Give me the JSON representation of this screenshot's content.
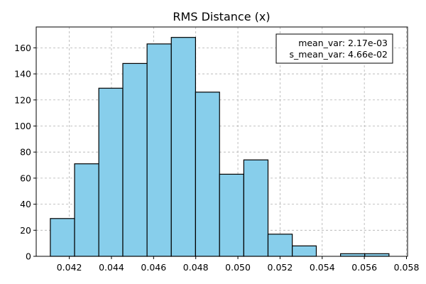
{
  "chart_data": {
    "type": "bar",
    "subtype": "histogram",
    "title": "RMS Distance (x)",
    "xlabel": "",
    "ylabel": "",
    "xlim": [
      0.04043,
      0.05805
    ],
    "ylim": [
      0,
      176
    ],
    "x_ticks": [
      0.042,
      0.044,
      0.046,
      0.048,
      0.05,
      0.052,
      0.054,
      0.056,
      0.058
    ],
    "x_tick_labels": [
      "0.042",
      "0.044",
      "0.046",
      "0.048",
      "0.050",
      "0.052",
      "0.054",
      "0.056",
      "0.058"
    ],
    "y_ticks": [
      0,
      20,
      40,
      60,
      80,
      100,
      120,
      140,
      160
    ],
    "y_tick_labels": [
      "0",
      "20",
      "40",
      "60",
      "80",
      "100",
      "120",
      "140",
      "160"
    ],
    "bin_edges": [
      0.0411,
      0.04225,
      0.0434,
      0.04454,
      0.04569,
      0.04684,
      0.04799,
      0.04913,
      0.05028,
      0.05143,
      0.05258,
      0.05372,
      0.05487,
      0.05602,
      0.05717
    ],
    "counts": [
      29,
      71,
      129,
      148,
      163,
      168,
      126,
      63,
      74,
      17,
      8,
      0,
      2,
      2
    ],
    "bar_color": "#87ceeb",
    "edge_color": "#000000",
    "grid": true,
    "grid_style": "dashed",
    "annotation": {
      "lines": [
        "mean_var: 2.17e-03",
        "s_mean_var: 4.66e-02"
      ],
      "placement": "top-right"
    }
  }
}
